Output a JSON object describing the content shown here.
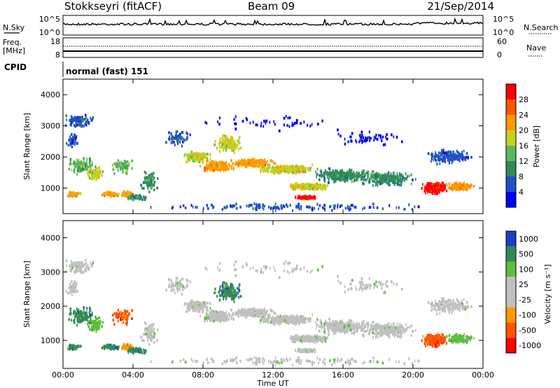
{
  "header": {
    "station": "Stokkseyri (fitACF)",
    "beam": "Beam 09",
    "date": "21/Sep/2014"
  },
  "strips": {
    "nsky_label": "N.Sky",
    "nsky_ticks": [
      "10^5",
      "10^0"
    ],
    "nsearch_label": "N.Search",
    "nsearch_ticks": [
      "10^5",
      "10^0"
    ],
    "freq_label": "Freq.",
    "freq_unit": "[MHz]",
    "freq_ticks": [
      "18",
      "8"
    ],
    "nave_label": "Nave",
    "nave_ticks": [
      "60",
      "0"
    ],
    "cpid_label": "CPID",
    "cpid_value": "normal (fast) 151"
  },
  "colors": {
    "power": [
      "#0000ff",
      "#2050c8",
      "#2e8b57",
      "#5bb85b",
      "#c8d020",
      "#ff9900",
      "#ff5500",
      "#ff0000"
    ],
    "velocity": [
      "#1e3cc8",
      "#2e8b57",
      "#5bbf3a",
      "#c0c0c0",
      "#c0c0c0",
      "#ff9900",
      "#ff5500",
      "#ff0000"
    ]
  },
  "chart_data": [
    {
      "type": "heatmap",
      "name": "power",
      "ylabel": "Slant Range [km]",
      "ylim": [
        180,
        4500
      ],
      "yticks": [
        "1000",
        "2000",
        "3000",
        "4000"
      ],
      "colorbar_label": "Power [dB]",
      "colorbar_ticks": [
        "4",
        "8",
        "12",
        "16",
        "20",
        "24",
        "28"
      ],
      "colorbar_range": [
        0,
        32
      ]
    },
    {
      "type": "heatmap",
      "name": "velocity",
      "ylabel": "Slant Range [km]",
      "ylim": [
        180,
        4500
      ],
      "yticks": [
        "1000",
        "2000",
        "3000",
        "4000"
      ],
      "xlabel": "Time UT",
      "xticks": [
        "00:00",
        "04:00",
        "08:00",
        "12:00",
        "16:00",
        "20:00",
        "00:00"
      ],
      "colorbar_label": "Velocity [m s⁻¹]",
      "colorbar_ticks": [
        "1000",
        "500",
        "100",
        "25",
        "-25",
        "-100",
        "-500",
        "-1000"
      ]
    }
  ]
}
